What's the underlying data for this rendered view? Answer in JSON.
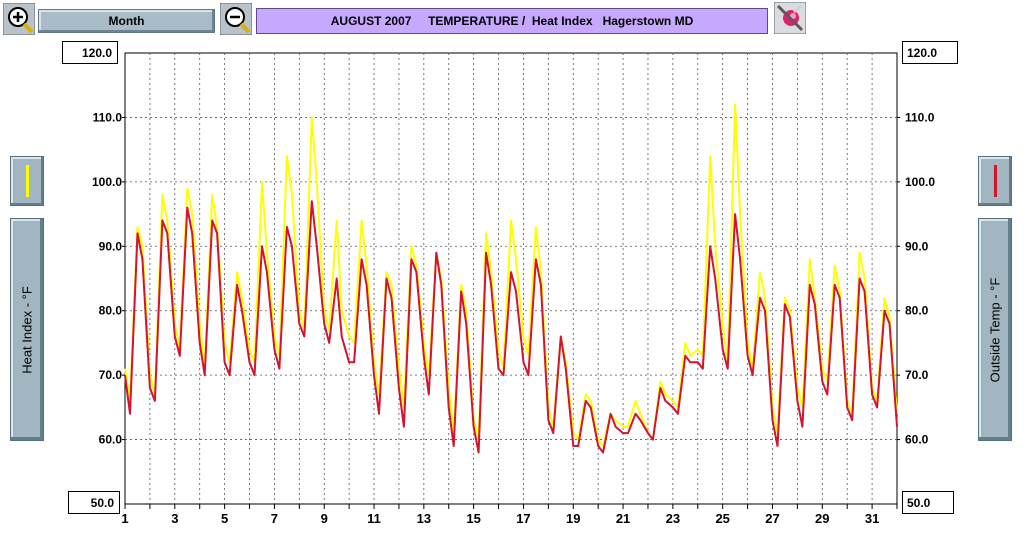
{
  "toolbar": {
    "zoom_in_icon": "zoom-in-magnifier-icon",
    "period_label": "Month",
    "zoom_out_icon": "zoom-out-magnifier-icon",
    "title": "AUGUST 2007     TEMPERATURE /  Heat Index   Hagerstown MD",
    "tool_icon": "paint-palette-tool-icon"
  },
  "left_axis": {
    "max_label": "120.0",
    "min_label": "50.0",
    "title": "Heat Index - °F",
    "legend_color": "#ffff00"
  },
  "right_axis": {
    "max_label": "120.0",
    "min_label": "50.0",
    "title": "Outside Temp - °F",
    "legend_color": "#d4132e"
  },
  "chart_data": {
    "type": "line",
    "title": "AUGUST 2007     TEMPERATURE /  Heat Index   Hagerstown MD",
    "xlabel": "",
    "ylabel": "Heat Index - °F",
    "y2label": "Outside Temp - °F",
    "xlim": [
      1,
      32
    ],
    "ylim": [
      50,
      120
    ],
    "x_ticks": [
      1,
      3,
      5,
      7,
      9,
      11,
      13,
      15,
      17,
      19,
      21,
      23,
      25,
      27,
      29,
      31
    ],
    "y_ticks": [
      "60.0",
      "70.0",
      "80.0",
      "90.0",
      "100.0",
      "110.0"
    ],
    "y_ticks_right": [
      "60.0",
      "70.0",
      "80.0",
      "90.0",
      "100.0",
      "110.0"
    ],
    "grid": true,
    "series": [
      {
        "name": "Heat Index - °F",
        "color": "#ffff00",
        "x": [
          1.0,
          1.2,
          1.5,
          1.7,
          2.0,
          2.2,
          2.5,
          2.7,
          3.0,
          3.2,
          3.5,
          3.7,
          4.0,
          4.2,
          4.5,
          4.7,
          5.0,
          5.2,
          5.5,
          5.7,
          6.0,
          6.2,
          6.5,
          6.7,
          7.0,
          7.2,
          7.5,
          7.7,
          8.0,
          8.2,
          8.5,
          8.7,
          9.0,
          9.2,
          9.5,
          9.7,
          10.0,
          10.2,
          10.5,
          10.7,
          11.0,
          11.2,
          11.5,
          11.7,
          12.0,
          12.2,
          12.5,
          12.7,
          13.0,
          13.2,
          13.5,
          13.7,
          14.0,
          14.2,
          14.5,
          14.7,
          15.0,
          15.2,
          15.5,
          15.7,
          16.0,
          16.2,
          16.5,
          16.7,
          17.0,
          17.2,
          17.5,
          17.7,
          18.0,
          18.2,
          18.5,
          18.7,
          19.0,
          19.2,
          19.5,
          19.7,
          20.0,
          20.2,
          20.5,
          20.7,
          21.0,
          21.2,
          21.5,
          21.7,
          22.0,
          22.2,
          22.5,
          22.7,
          23.0,
          23.2,
          23.5,
          23.7,
          24.0,
          24.2,
          24.5,
          24.7,
          25.0,
          25.2,
          25.5,
          25.7,
          26.0,
          26.2,
          26.5,
          26.7,
          27.0,
          27.2,
          27.5,
          27.7,
          28.0,
          28.2,
          28.5,
          28.7,
          29.0,
          29.2,
          29.5,
          29.7,
          30.0,
          30.2,
          30.5,
          30.7,
          31.0,
          31.2,
          31.5,
          31.7,
          32.0
        ],
        "values": [
          71,
          66,
          93,
          90,
          70,
          67,
          98,
          94,
          78,
          74,
          99,
          95,
          78,
          71,
          98,
          93,
          75,
          72,
          86,
          82,
          74,
          72,
          100,
          89,
          76,
          73,
          104,
          98,
          80,
          77,
          110,
          100,
          80,
          77,
          94,
          80,
          76,
          75,
          94,
          87,
          72,
          67,
          86,
          84,
          71,
          65,
          90,
          87,
          75,
          70,
          89,
          85,
          68,
          61,
          84,
          80,
          63,
          60,
          92,
          86,
          74,
          71,
          94,
          88,
          76,
          73,
          93,
          86,
          65,
          62,
          76,
          72,
          61,
          60,
          67,
          66,
          60,
          59,
          64,
          63,
          62,
          62,
          66,
          64,
          61,
          60,
          69,
          67,
          66,
          65,
          75,
          73,
          74,
          73,
          104,
          90,
          78,
          72,
          112,
          95,
          75,
          71,
          86,
          82,
          65,
          61,
          82,
          80,
          68,
          65,
          88,
          82,
          71,
          69,
          87,
          83,
          66,
          64,
          89,
          85,
          68,
          66,
          82,
          79,
          64
        ]
      },
      {
        "name": "Outside Temp - °F",
        "color": "#d4132e",
        "x": [
          1.0,
          1.2,
          1.5,
          1.7,
          2.0,
          2.2,
          2.5,
          2.7,
          3.0,
          3.2,
          3.5,
          3.7,
          4.0,
          4.2,
          4.5,
          4.7,
          5.0,
          5.2,
          5.5,
          5.7,
          6.0,
          6.2,
          6.5,
          6.7,
          7.0,
          7.2,
          7.5,
          7.7,
          8.0,
          8.2,
          8.5,
          8.7,
          9.0,
          9.2,
          9.5,
          9.7,
          10.0,
          10.2,
          10.5,
          10.7,
          11.0,
          11.2,
          11.5,
          11.7,
          12.0,
          12.2,
          12.5,
          12.7,
          13.0,
          13.2,
          13.5,
          13.7,
          14.0,
          14.2,
          14.5,
          14.7,
          15.0,
          15.2,
          15.5,
          15.7,
          16.0,
          16.2,
          16.5,
          16.7,
          17.0,
          17.2,
          17.5,
          17.7,
          18.0,
          18.2,
          18.5,
          18.7,
          19.0,
          19.2,
          19.5,
          19.7,
          20.0,
          20.2,
          20.5,
          20.7,
          21.0,
          21.2,
          21.5,
          21.7,
          22.0,
          22.2,
          22.5,
          22.7,
          23.0,
          23.2,
          23.5,
          23.7,
          24.0,
          24.2,
          24.5,
          24.7,
          25.0,
          25.2,
          25.5,
          25.7,
          26.0,
          26.2,
          26.5,
          26.7,
          27.0,
          27.2,
          27.5,
          27.7,
          28.0,
          28.2,
          28.5,
          28.7,
          29.0,
          29.2,
          29.5,
          29.7,
          30.0,
          30.2,
          30.5,
          30.7,
          31.0,
          31.2,
          31.5,
          31.7,
          32.0
        ],
        "values": [
          70,
          64,
          92,
          88,
          68,
          66,
          94,
          92,
          76,
          73,
          96,
          92,
          75,
          70,
          94,
          92,
          72,
          70,
          84,
          80,
          72,
          70,
          90,
          86,
          74,
          71,
          93,
          90,
          78,
          76,
          97,
          90,
          78,
          75,
          85,
          76,
          72,
          72,
          88,
          84,
          70,
          64,
          85,
          82,
          68,
          62,
          88,
          86,
          73,
          67,
          89,
          84,
          65,
          59,
          83,
          78,
          62,
          58,
          89,
          84,
          71,
          70,
          86,
          83,
          72,
          70,
          88,
          84,
          63,
          61,
          76,
          71,
          59,
          59,
          66,
          65,
          59,
          58,
          64,
          62,
          61,
          61,
          64,
          63,
          61,
          60,
          68,
          66,
          65,
          64,
          73,
          72,
          72,
          71,
          90,
          85,
          74,
          71,
          95,
          88,
          73,
          70,
          82,
          80,
          63,
          59,
          81,
          79,
          66,
          62,
          84,
          81,
          69,
          67,
          84,
          82,
          65,
          63,
          85,
          83,
          67,
          65,
          80,
          78,
          62
        ]
      }
    ]
  }
}
